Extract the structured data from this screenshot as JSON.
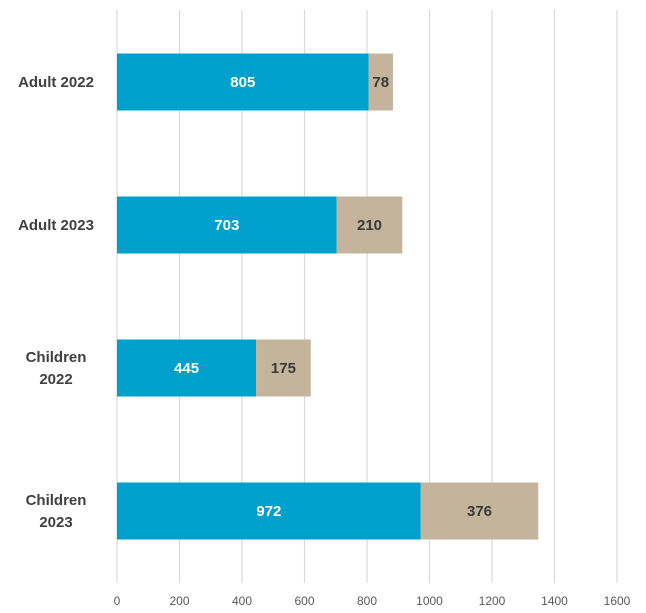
{
  "chart_data": {
    "type": "bar",
    "orientation": "horizontal",
    "stacked": true,
    "title": "",
    "xlabel": "",
    "ylabel": "",
    "categories": [
      [
        "Adult 2022"
      ],
      [
        "Adult 2023"
      ],
      [
        "Children",
        "2022"
      ],
      [
        "Children",
        "2023"
      ]
    ],
    "series": [
      {
        "values": [
          805,
          703,
          445,
          972
        ],
        "color": "#00a0cc",
        "label_color": "#ffffff"
      },
      {
        "values": [
          78,
          210,
          175,
          376
        ],
        "color": "#c4b49c",
        "label_color": "#3a3a3a"
      }
    ],
    "xlim": [
      0,
      1600
    ],
    "xticks": [
      0,
      200,
      400,
      600,
      800,
      1000,
      1200,
      1400,
      1600
    ],
    "grid": "vertical",
    "gridline_color": "#d9d9d9",
    "legend": "none"
  }
}
